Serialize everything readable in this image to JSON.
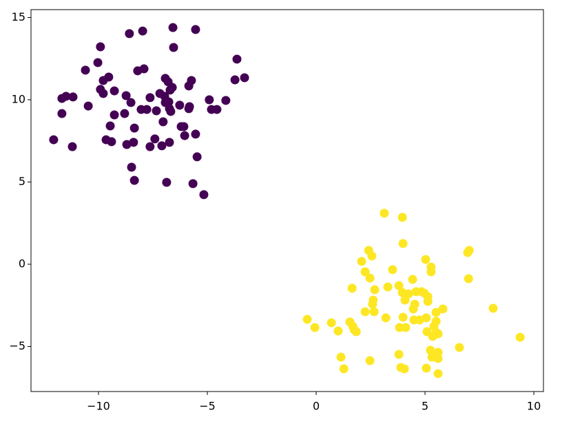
{
  "chart_data": {
    "type": "scatter",
    "xlim": [
      -13.1,
      10.44
    ],
    "ylim": [
      -7.74,
      15.48
    ],
    "xticks": [
      {
        "value": -10,
        "label": "−10"
      },
      {
        "value": -5,
        "label": "−5"
      },
      0,
      5,
      10
    ],
    "yticks": [
      {
        "value": -5,
        "label": "−5"
      },
      0,
      5,
      10,
      15
    ],
    "series": [
      {
        "color": "#440154",
        "x": [
          -12.06,
          -11.68,
          -11.68,
          -11.49,
          -11.17,
          -11.2,
          -10.6,
          -10.47,
          -10.03,
          -9.91,
          -9.91,
          -9.78,
          -9.78,
          -9.53,
          -9.46,
          -9.65,
          -9.4,
          -9.27,
          -9.27,
          -8.8,
          -8.73,
          -8.7,
          -8.58,
          -8.51,
          -8.48,
          -8.35,
          -8.35,
          -8.39,
          -8.2,
          -8.04,
          -7.97,
          -7.91,
          -7.78,
          -7.63,
          -7.63,
          -7.41,
          -7.34,
          -7.18,
          -7.09,
          -7.03,
          -6.96,
          -6.93,
          -6.93,
          -6.87,
          -6.8,
          -6.74,
          -6.77,
          -6.74,
          -6.71,
          -6.68,
          -6.58,
          -6.55,
          -6.61,
          -6.27,
          -6.2,
          -6.08,
          -6.04,
          -5.85,
          -5.82,
          -5.73,
          -5.66,
          -5.54,
          -5.54,
          -5.47,
          -5.16,
          -4.91,
          -4.81,
          -4.56,
          -4.15,
          -3.73,
          -3.64,
          -3.29,
          -5.85
        ],
        "y": [
          7.57,
          10.08,
          9.16,
          10.21,
          10.17,
          7.15,
          11.8,
          9.62,
          12.26,
          13.22,
          10.63,
          10.38,
          11.17,
          11.38,
          8.41,
          7.57,
          7.45,
          10.54,
          9.08,
          9.16,
          10.25,
          7.28,
          14.02,
          9.83,
          5.9,
          8.28,
          5.1,
          7.41,
          11.76,
          9.41,
          14.18,
          11.88,
          9.41,
          10.13,
          7.15,
          7.62,
          9.33,
          10.38,
          7.2,
          8.66,
          10.21,
          11.3,
          9.83,
          4.98,
          11.09,
          7.41,
          9.87,
          9.46,
          10.59,
          9.29,
          14.39,
          13.18,
          10.75,
          9.67,
          8.37,
          8.37,
          7.82,
          10.84,
          9.58,
          11.17,
          4.9,
          14.27,
          7.91,
          6.53,
          4.23,
          10.0,
          9.41,
          9.41,
          9.96,
          11.21,
          12.47,
          11.34,
          9.46
        ]
      },
      {
        "color": "#fde725",
        "x": [
          -0.41,
          -0.06,
          0.7,
          1.01,
          1.14,
          1.27,
          1.55,
          1.65,
          1.68,
          1.74,
          1.84,
          2.09,
          2.25,
          2.25,
          2.41,
          2.47,
          2.47,
          2.56,
          2.59,
          2.62,
          2.66,
          2.69,
          3.13,
          3.2,
          3.29,
          3.51,
          3.8,
          3.83,
          3.8,
          3.89,
          3.96,
          3.99,
          3.96,
          3.99,
          4.05,
          4.11,
          4.08,
          4.24,
          4.43,
          4.46,
          4.49,
          4.53,
          4.59,
          4.75,
          4.84,
          4.97,
          5.03,
          5.06,
          5.09,
          5.13,
          5.06,
          5.13,
          5.25,
          5.28,
          5.28,
          5.32,
          5.35,
          5.41,
          5.51,
          5.51,
          5.51,
          5.6,
          5.6,
          5.6,
          5.6,
          5.82,
          6.58,
          6.96,
          7.03,
          7.0,
          8.13,
          9.37
        ],
        "y": [
          -3.35,
          -3.85,
          -3.56,
          -4.06,
          -5.65,
          -6.36,
          -3.51,
          -1.46,
          -3.77,
          -3.97,
          -4.1,
          0.17,
          -0.46,
          -2.89,
          0.84,
          -0.84,
          -5.86,
          0.5,
          -2.43,
          -2.18,
          -2.89,
          -1.55,
          3.1,
          -3.26,
          -1.38,
          -0.33,
          -1.3,
          -3.85,
          -5.48,
          -6.28,
          2.85,
          1.26,
          -1.72,
          -3.22,
          -6.36,
          -3.85,
          -2.18,
          -1.8,
          -0.92,
          -2.72,
          -3.39,
          -2.43,
          -1.67,
          -3.39,
          -1.67,
          -1.76,
          0.29,
          -3.26,
          -4.1,
          -1.97,
          -6.32,
          -2.26,
          -5.23,
          -0.17,
          -0.46,
          -5.65,
          -4.39,
          -3.77,
          -2.93,
          -3.47,
          -4.14,
          -4.23,
          -5.36,
          -5.73,
          -6.65,
          -2.72,
          -5.06,
          0.71,
          0.84,
          -0.88,
          -2.68,
          -4.44
        ]
      }
    ]
  }
}
